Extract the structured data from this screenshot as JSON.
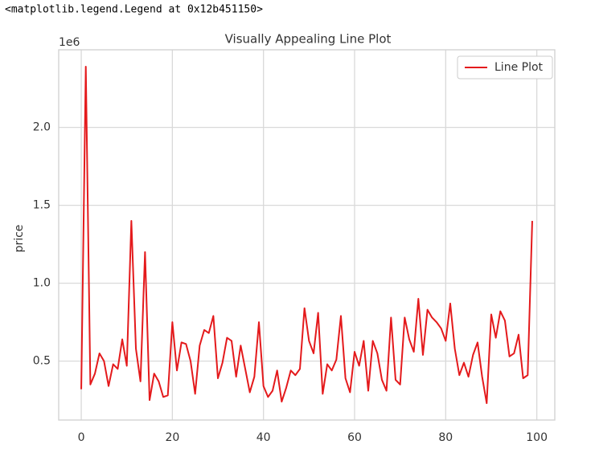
{
  "header": "<matplotlib.legend.Legend at 0x12b451150>",
  "chart_data": {
    "type": "line",
    "title": "Visually Appealing Line Plot",
    "y_label": "price",
    "y_offset": "1e6",
    "x": [
      0,
      1,
      2,
      3,
      4,
      5,
      6,
      7,
      8,
      9,
      10,
      11,
      12,
      13,
      14,
      15,
      16,
      17,
      18,
      19,
      20,
      21,
      22,
      23,
      24,
      25,
      26,
      27,
      28,
      29,
      30,
      31,
      32,
      33,
      34,
      35,
      36,
      37,
      38,
      39,
      40,
      41,
      42,
      43,
      44,
      45,
      46,
      47,
      48,
      49,
      50,
      51,
      52,
      53,
      54,
      55,
      56,
      57,
      58,
      59,
      60,
      61,
      62,
      63,
      64,
      65,
      66,
      67,
      68,
      69,
      70,
      71,
      72,
      73,
      74,
      75,
      76,
      77,
      78,
      79,
      80,
      81,
      82,
      83,
      84,
      85,
      86,
      87,
      88,
      89,
      90,
      91,
      92,
      93,
      94,
      95,
      96,
      97,
      98,
      99
    ],
    "series": [
      {
        "name": "Line Plot",
        "color": "#e41a1c",
        "values": [
          0.32,
          2.39,
          0.35,
          0.42,
          0.55,
          0.5,
          0.34,
          0.48,
          0.45,
          0.64,
          0.47,
          1.4,
          0.58,
          0.37,
          1.2,
          0.25,
          0.42,
          0.37,
          0.27,
          0.28,
          0.75,
          0.44,
          0.62,
          0.61,
          0.5,
          0.29,
          0.6,
          0.7,
          0.68,
          0.79,
          0.39,
          0.49,
          0.65,
          0.63,
          0.4,
          0.6,
          0.45,
          0.3,
          0.4,
          0.75,
          0.34,
          0.27,
          0.31,
          0.44,
          0.24,
          0.33,
          0.44,
          0.41,
          0.45,
          0.84,
          0.63,
          0.55,
          0.81,
          0.29,
          0.48,
          0.44,
          0.51,
          0.79,
          0.39,
          0.3,
          0.56,
          0.47,
          0.63,
          0.31,
          0.63,
          0.55,
          0.38,
          0.31,
          0.78,
          0.38,
          0.35,
          0.78,
          0.64,
          0.56,
          0.9,
          0.54,
          0.83,
          0.78,
          0.75,
          0.71,
          0.63,
          0.87,
          0.58,
          0.41,
          0.49,
          0.4,
          0.54,
          0.62,
          0.4,
          0.23,
          0.8,
          0.65,
          0.82,
          0.76,
          0.53,
          0.55,
          0.67,
          0.39,
          0.41,
          1.4
        ]
      }
    ],
    "xlim": [
      -4.95,
      103.95
    ],
    "xticks": [
      0,
      20,
      40,
      60,
      80,
      100
    ],
    "ylim": [
      0.122,
      2.498
    ],
    "yticks": [
      0.5,
      {
        "value": 1,
        "label": "1.0"
      },
      1.5,
      {
        "value": 2,
        "label": "2.0"
      }
    ],
    "grid": true,
    "legend": "upper right"
  }
}
